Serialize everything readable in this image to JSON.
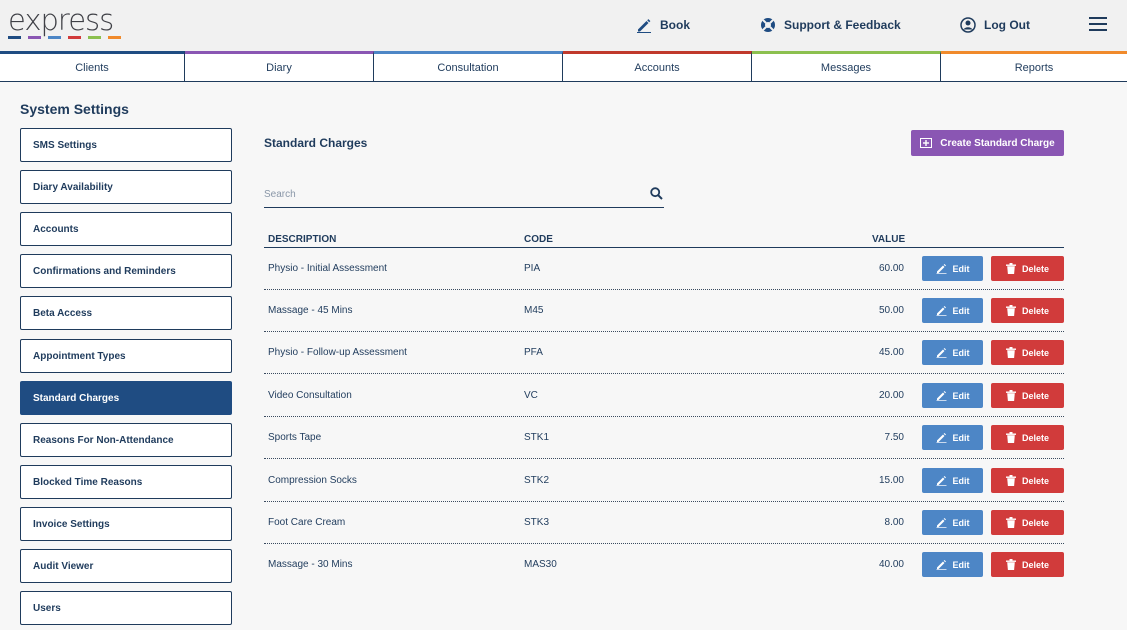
{
  "logo": {
    "text": "express",
    "bar_colors": [
      "#1f4c82",
      "#8a56b3",
      "#4d86c6",
      "#d13b3b",
      "#8cc04f",
      "#f08a2b"
    ]
  },
  "header_nav": [
    {
      "label": "Book",
      "icon": "pencil-icon"
    },
    {
      "label": "Support & Feedback",
      "icon": "lifebuoy-icon"
    },
    {
      "label": "Log Out",
      "icon": "user-circle-icon"
    }
  ],
  "tabs": [
    {
      "label": "Clients",
      "color": "#1f4c82"
    },
    {
      "label": "Diary",
      "color": "#8a56b3"
    },
    {
      "label": "Consultation",
      "color": "#4d86c6"
    },
    {
      "label": "Accounts",
      "color": "#c0392b"
    },
    {
      "label": "Messages",
      "color": "#8cc04f"
    },
    {
      "label": "Reports",
      "color": "#f08a2b"
    }
  ],
  "sidebar": {
    "title": "System Settings",
    "items": [
      "SMS Settings",
      "Diary Availability",
      "Accounts",
      "Confirmations and Reminders",
      "Beta Access",
      "Appointment Types",
      "Standard Charges",
      "Reasons For Non-Attendance",
      "Blocked Time Reasons",
      "Invoice Settings",
      "Audit Viewer",
      "Users"
    ],
    "active": "Standard Charges"
  },
  "main": {
    "title": "Standard Charges",
    "create_label": "Create Standard Charge",
    "search_placeholder": "Search",
    "columns": {
      "description": "DESCRIPTION",
      "code": "CODE",
      "value": "VALUE"
    },
    "edit_label": "Edit",
    "delete_label": "Delete",
    "rows": [
      {
        "description": "Physio - Initial Assessment",
        "code": "PIA",
        "value": "60.00"
      },
      {
        "description": "Massage - 45 Mins",
        "code": "M45",
        "value": "50.00"
      },
      {
        "description": "Physio - Follow-up Assessment",
        "code": "PFA",
        "value": "45.00"
      },
      {
        "description": "Video Consultation",
        "code": "VC",
        "value": "20.00"
      },
      {
        "description": "Sports Tape",
        "code": "STK1",
        "value": "7.50"
      },
      {
        "description": "Compression Socks",
        "code": "STK2",
        "value": "15.00"
      },
      {
        "description": "Foot Care Cream",
        "code": "STK3",
        "value": "8.00"
      },
      {
        "description": "Massage - 30 Mins",
        "code": "MAS30",
        "value": "40.00"
      }
    ]
  }
}
